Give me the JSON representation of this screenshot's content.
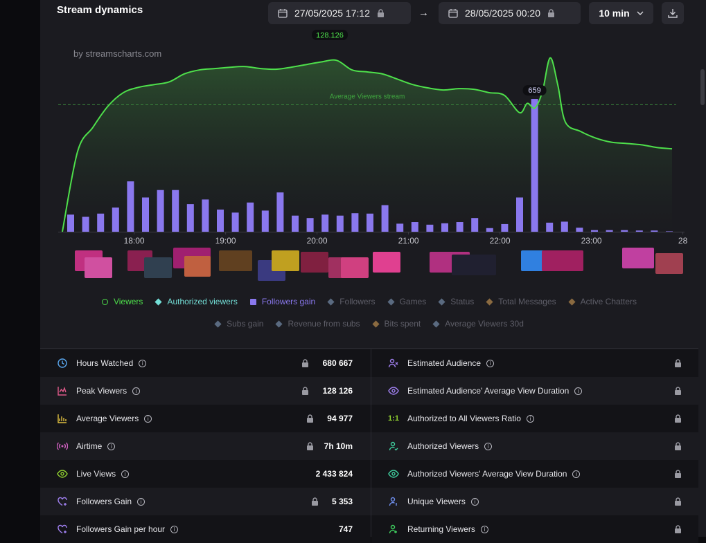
{
  "header": {
    "title": "Stream dynamics",
    "date_from": "27/05/2025 17:12",
    "date_to": "28/05/2025 00:20",
    "interval": "10 min"
  },
  "watermark": "by streamscharts.com",
  "colors": {
    "viewers": "#4ee04b",
    "followers_gain": "#8a78ee",
    "authorized": "#74e0d8",
    "muted": "#6e6e78"
  },
  "chart_data": {
    "type": "line",
    "x_tick_labels": [
      "18:00",
      "19:00",
      "20:00",
      "21:00",
      "22:00",
      "23:00",
      "28"
    ],
    "peak_label": "128.126",
    "bar_peak_label": "659",
    "average_line_label": "Average Viewers stream",
    "average_viewers": 94977,
    "series": [
      {
        "name": "Viewers",
        "type": "area",
        "points": [
          [
            0,
            0
          ],
          [
            10,
            60000
          ],
          [
            20,
            78000
          ],
          [
            30,
            94000
          ],
          [
            40,
            104000
          ],
          [
            50,
            108000
          ],
          [
            60,
            110000
          ],
          [
            70,
            112000
          ],
          [
            80,
            118000
          ],
          [
            90,
            121000
          ],
          [
            100,
            122000
          ],
          [
            110,
            123000
          ],
          [
            120,
            123500
          ],
          [
            130,
            122000
          ],
          [
            140,
            121500
          ],
          [
            150,
            123000
          ],
          [
            160,
            125000
          ],
          [
            170,
            127000
          ],
          [
            180,
            128126
          ],
          [
            190,
            121000
          ],
          [
            200,
            119500
          ],
          [
            210,
            118000
          ],
          [
            220,
            114000
          ],
          [
            230,
            110000
          ],
          [
            240,
            107500
          ],
          [
            250,
            106000
          ],
          [
            260,
            107000
          ],
          [
            270,
            106500
          ],
          [
            280,
            104000
          ],
          [
            290,
            102000
          ],
          [
            300,
            89000
          ],
          [
            305,
            96000
          ],
          [
            310,
            92500
          ],
          [
            315,
            105000
          ],
          [
            320,
            130000
          ],
          [
            325,
            110000
          ],
          [
            330,
            82000
          ],
          [
            340,
            75000
          ],
          [
            350,
            70000
          ],
          [
            360,
            67000
          ],
          [
            370,
            66000
          ],
          [
            380,
            65000
          ],
          [
            390,
            63000
          ],
          [
            400,
            62000
          ]
        ]
      },
      {
        "name": "Followers gain",
        "type": "bar",
        "values": [
          85,
          74,
          90,
          120,
          250,
          170,
          207,
          207,
          137,
          160,
          110,
          95,
          145,
          105,
          195,
          80,
          68,
          85,
          80,
          92,
          90,
          132,
          40,
          48,
          35,
          42,
          48,
          68,
          18,
          38,
          170,
          659,
          45,
          50,
          20,
          8,
          8,
          8,
          6,
          6,
          2
        ]
      }
    ],
    "ylim_viewers": [
      0,
      150000
    ],
    "ylim_followers": [
      0,
      800
    ]
  },
  "legend": {
    "row1": [
      {
        "label": "Viewers",
        "active": true,
        "shape": "ring",
        "color": "#4ee04b"
      },
      {
        "label": "Authorized viewers",
        "active": true,
        "shape": "diamond",
        "color": "#74e0d8"
      },
      {
        "label": "Followers gain",
        "active": true,
        "shape": "square",
        "color": "#8a78ee"
      },
      {
        "label": "Followers",
        "active": false,
        "shape": "diamond",
        "color": "#5a6a80"
      },
      {
        "label": "Games",
        "active": false,
        "shape": "diamond",
        "color": "#5a6a80"
      },
      {
        "label": "Status",
        "active": false,
        "shape": "diamond",
        "color": "#5a6a80"
      },
      {
        "label": "Total Messages",
        "active": false,
        "shape": "diamond",
        "color": "#8a6a40"
      },
      {
        "label": "Active Chatters",
        "active": false,
        "shape": "diamond",
        "color": "#8a6a40"
      }
    ],
    "row2": [
      {
        "label": "Subs gain",
        "active": false,
        "shape": "diamond",
        "color": "#5a6a80"
      },
      {
        "label": "Revenue from subs",
        "active": false,
        "shape": "diamond",
        "color": "#5a6a80"
      },
      {
        "label": "Bits spent",
        "active": false,
        "shape": "diamond",
        "color": "#8a6a40"
      },
      {
        "label": "Average Viewers 30d",
        "active": false,
        "shape": "diamond",
        "color": "#5a6a80"
      }
    ]
  },
  "stats_left": [
    {
      "label": "Hours Watched",
      "value": "680 667",
      "locked": true,
      "icon": "clock-icon",
      "color": "#5aa8f0"
    },
    {
      "label": "Peak Viewers",
      "value": "128 126",
      "locked": true,
      "icon": "peak-chart-icon",
      "color": "#e05a8a"
    },
    {
      "label": "Average Viewers",
      "value": "94 977",
      "locked": true,
      "icon": "average-chart-icon",
      "color": "#e0c040"
    },
    {
      "label": "Airtime",
      "value": "7h 10m",
      "locked": true,
      "icon": "broadcast-icon",
      "color": "#d060c0"
    },
    {
      "label": "Live Views",
      "value": "2 433 824",
      "locked": false,
      "icon": "eye-icon",
      "color": "#90d030"
    },
    {
      "label": "Followers Gain",
      "value": "5 353",
      "locked": true,
      "icon": "heart-plus-icon",
      "color": "#a080f0"
    },
    {
      "label": "Followers Gain per hour",
      "value": "747",
      "locked": false,
      "icon": "heart-clock-icon",
      "color": "#a080f0"
    }
  ],
  "stats_right": [
    {
      "label": "Estimated Audience",
      "icon": "audience-icon",
      "color": "#a080f0"
    },
    {
      "label": "Estimated Audience' Average View Duration",
      "icon": "audience-duration-icon",
      "color": "#a080f0"
    },
    {
      "label": "Authorized to All Viewers Ratio",
      "icon": "ratio-icon",
      "icon_text": "1:1",
      "color": "#90d030"
    },
    {
      "label": "Authorized Viewers",
      "icon": "user-check-icon",
      "color": "#40d0a0"
    },
    {
      "label": "Authorized Viewers' Average View Duration",
      "icon": "eye-duration-icon",
      "color": "#40d0a0"
    },
    {
      "label": "Unique Viewers",
      "icon": "user-unique-icon",
      "color": "#7090f0"
    },
    {
      "label": "Returning Viewers",
      "icon": "user-return-icon",
      "color": "#40d060"
    }
  ]
}
